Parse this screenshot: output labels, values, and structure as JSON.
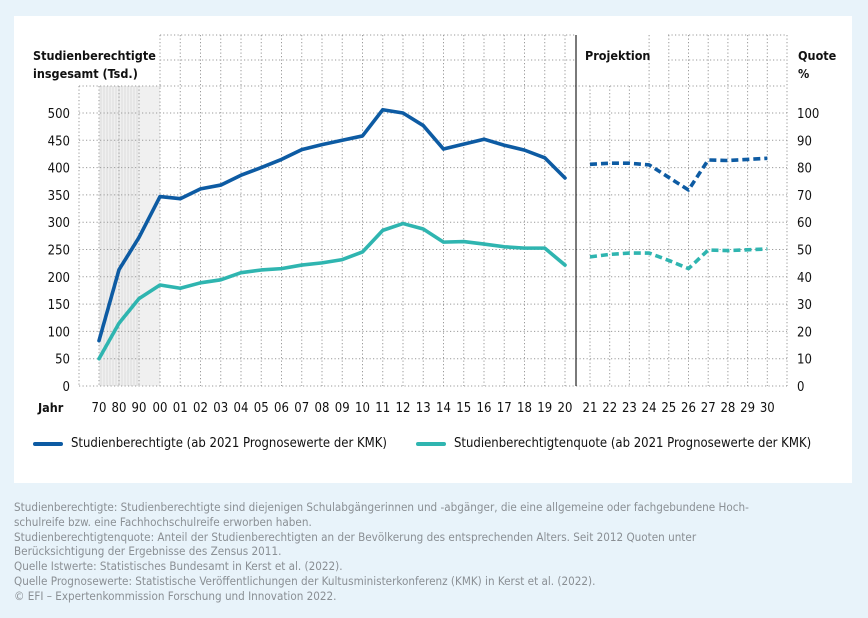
{
  "chart_data": {
    "type": "line",
    "title": "",
    "left_axis": {
      "label_line1": "Studienberechtigte",
      "label_line2": "insgesamt (Tsd.)",
      "ylim": [
        0,
        500
      ],
      "ticks": [
        "0",
        "50",
        "100",
        "150",
        "200",
        "250",
        "300",
        "350",
        "400",
        "450",
        "500"
      ]
    },
    "right_axis": {
      "label_line1": "Quote",
      "label_line2": "%",
      "ylim": [
        0,
        100
      ],
      "ticks": [
        "0",
        "10",
        "20",
        "30",
        "40",
        "50",
        "60",
        "70",
        "80",
        "90",
        "100"
      ]
    },
    "xlabel": "Jahr",
    "categories": [
      "70",
      "80",
      "90",
      "00",
      "01",
      "02",
      "03",
      "04",
      "05",
      "06",
      "07",
      "08",
      "09",
      "10",
      "11",
      "12",
      "13",
      "14",
      "15",
      "16",
      "17",
      "18",
      "19",
      "20",
      "21",
      "22",
      "23",
      "24",
      "25",
      "26",
      "27",
      "28",
      "29",
      "30"
    ],
    "projection_label": "Projektion",
    "projection_start": "21",
    "grid": true,
    "series": [
      {
        "name": "Studienberechtigte (ab 2021 Prognosewerte der KMK)",
        "axis": "left",
        "color": "#0d5ba3",
        "values": [
          83,
          213,
          272,
          347,
          343,
          361,
          368,
          386,
          400,
          415,
          433,
          442,
          450,
          458,
          506,
          500,
          477,
          434,
          443,
          452,
          441,
          432,
          418,
          381,
          406,
          408,
          408,
          405,
          382,
          359,
          414,
          413,
          415,
          417
        ]
      },
      {
        "name": "Studienberechtigtenquote (ab 2021 Prognosewerte der KMK)",
        "axis": "right",
        "color": "#2fb5b0",
        "values": [
          10,
          23,
          32,
          37,
          35.8,
          37.8,
          38.9,
          41.5,
          42.5,
          43,
          44.3,
          45.1,
          46.3,
          49.1,
          57,
          59.5,
          57.5,
          52.7,
          52.9,
          52,
          51,
          50.5,
          50.5,
          44.3,
          47.3,
          48.2,
          48.7,
          48.7,
          46,
          43,
          49.8,
          49.6,
          49.9,
          50.2
        ]
      }
    ],
    "shaded_range": [
      "70",
      "00"
    ],
    "legend_position": "bottom"
  },
  "notes": [
    "Studienberechtigte: Studienberechtigte sind diejenigen Schulabgängerinnen und -abgänger, die eine allgemeine oder fachgebundene Hoch-",
    "schulreife bzw. eine Fachhochschulreife erworben haben.",
    "Studienberechtigtenquote: Anteil der Studienberechtigten an der Bevölkerung des entsprechenden Alters. Seit 2012 Quoten unter",
    "Berücksichtigung der Ergebnisse des Zensus 2011.",
    "Quelle Istwerte: Statistisches Bundesamt in Kerst et al. (2022).",
    "Quelle Prognosewerte: Statistische Veröffentlichungen der Kultusministerkonferenz (KMK) in Kerst et al. (2022).",
    "© EFI – Expertenkommission Forschung und Innovation 2022."
  ]
}
